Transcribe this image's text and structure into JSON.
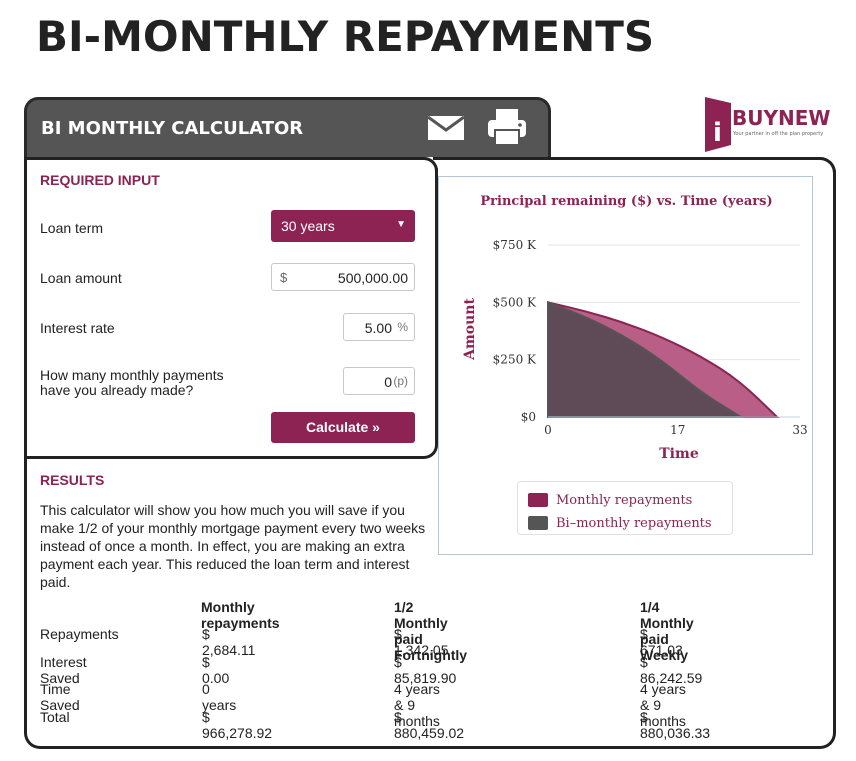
{
  "page": {
    "title": "BI-MONTHLY REPAYMENTS"
  },
  "header": {
    "title": "BI MONTHLY CALCULATOR",
    "mail_icon": "envelope-icon",
    "print_icon": "printer-icon"
  },
  "logo": {
    "brand_prefix": "i",
    "brand_main": "BUYNEW",
    "tagline": "Your partner in off the plan property"
  },
  "inputs": {
    "section_label": "REQUIRED INPUT",
    "loan_term": {
      "label": "Loan term",
      "value": "30 years"
    },
    "loan_amount": {
      "label": "Loan amount",
      "prefix": "$",
      "value": "500,000.00"
    },
    "interest_rate": {
      "label": "Interest rate",
      "value": "5.00",
      "suffix": "%"
    },
    "payments_made": {
      "label_line1": "How many monthly payments",
      "label_line2": "have you already made?",
      "value": "0",
      "suffix": "(p)"
    },
    "calculate_label": "Calculate »"
  },
  "results": {
    "section_label": "RESULTS",
    "description": "This calculator will show you how much you will save if you make 1/2 of your monthly mortgage payment every two weeks instead of once a month. In effect, you are making an extra payment each year. This reduced the loan term and interest paid.",
    "columns": [
      "Monthly repayments",
      "1/2 Monthly paid Fortnightly",
      "1/4 Monthly paid Weekly"
    ],
    "rows": [
      {
        "label": "Repayments",
        "values": [
          "$ 2,684.11",
          "$ 1,342.05",
          "$ 671.03"
        ]
      },
      {
        "label": "Interest Saved",
        "values": [
          "$ 0.00",
          "$ 85,819.90",
          "$ 86,242.59"
        ]
      },
      {
        "label": "Time Saved",
        "values": [
          "0 years",
          "4 years & 9 months",
          "4 years & 9 months"
        ]
      },
      {
        "label": "Total",
        "values": [
          "$ 966,278.92",
          "$ 880,459.02",
          "$ 880,036.33"
        ]
      }
    ]
  },
  "chart_data": {
    "type": "area",
    "title": "Principal remaining ($) vs. Time (years)",
    "xlabel": "Time",
    "ylabel": "Amount",
    "xlim": [
      0,
      33
    ],
    "ylim": [
      0,
      750000
    ],
    "x_ticks": [
      "0",
      "17",
      "33"
    ],
    "y_ticks": [
      "$0",
      "$250 K",
      "$500 K",
      "$750 K"
    ],
    "legend_position": "bottom",
    "series": [
      {
        "name": "Monthly repayments",
        "color": "#8c2352",
        "x": [
          0,
          5,
          10,
          15,
          20,
          25,
          30
        ],
        "y": [
          500000,
          461000,
          411000,
          347000,
          265000,
          160000,
          0
        ]
      },
      {
        "name": "Bi-monthly repayments",
        "color": "#555555",
        "x": [
          0,
          5,
          10,
          15,
          20,
          25.25
        ],
        "y": [
          500000,
          436000,
          352000,
          245000,
          108000,
          0
        ]
      }
    ],
    "legend": [
      "Monthly repayments",
      "Bi–monthly repayments"
    ]
  }
}
